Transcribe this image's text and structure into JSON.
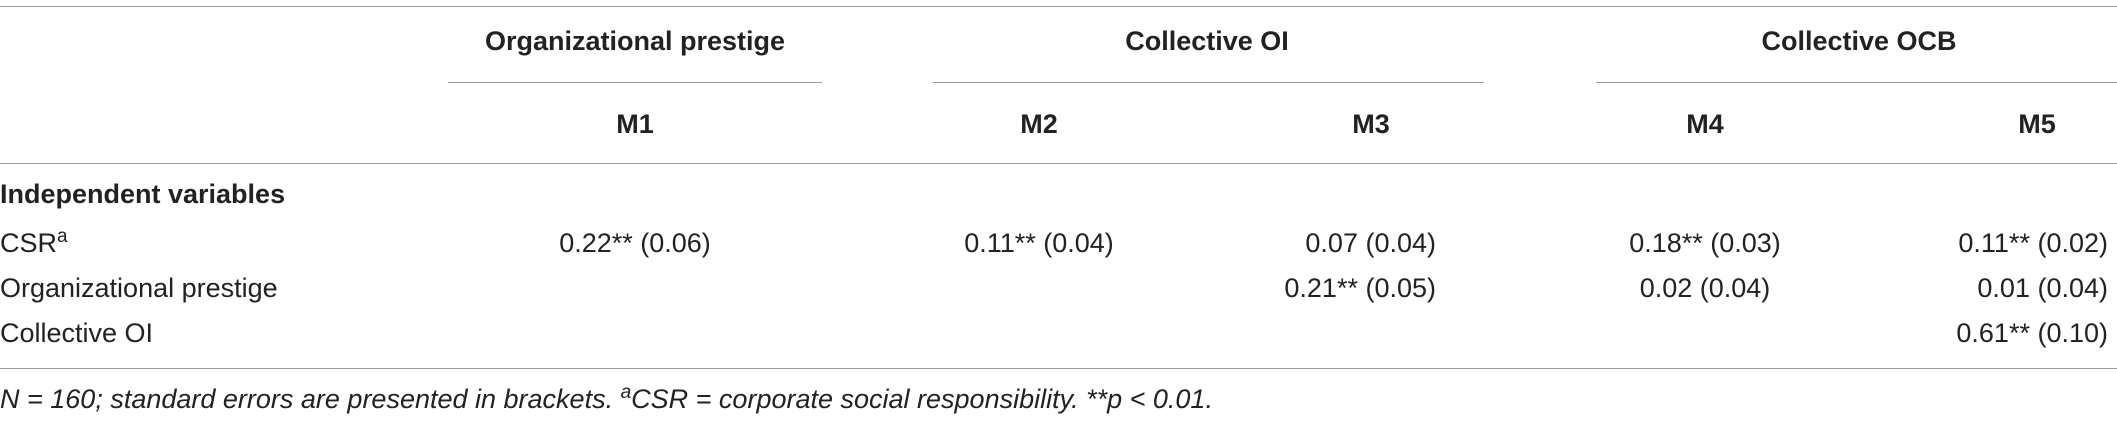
{
  "table": {
    "group_headers": [
      "Organizational prestige",
      "Collective OI",
      "Collective OCB"
    ],
    "model_headers": [
      "M1",
      "M2",
      "M3",
      "M4",
      "M5"
    ],
    "section_label": "Independent variables",
    "rows": [
      {
        "label": "CSR",
        "label_sup": "a",
        "cells": [
          "0.22** (0.06)",
          "0.11** (0.04)",
          "0.07 (0.04)",
          "0.18** (0.03)",
          "0.11** (0.02)"
        ]
      },
      {
        "label": "Organizational prestige",
        "label_sup": "",
        "cells": [
          "",
          "",
          "0.21** (0.05)",
          "0.02 (0.04)",
          "0.01 (0.04)"
        ]
      },
      {
        "label": "Collective OI",
        "label_sup": "",
        "cells": [
          "",
          "",
          "",
          "",
          "0.61** (0.10)"
        ]
      }
    ]
  },
  "footnote": {
    "part1": "N = 160; standard errors are presented in brackets. ",
    "sup": "a",
    "part2": "CSR = corporate social responsibility. **p < 0.01."
  }
}
